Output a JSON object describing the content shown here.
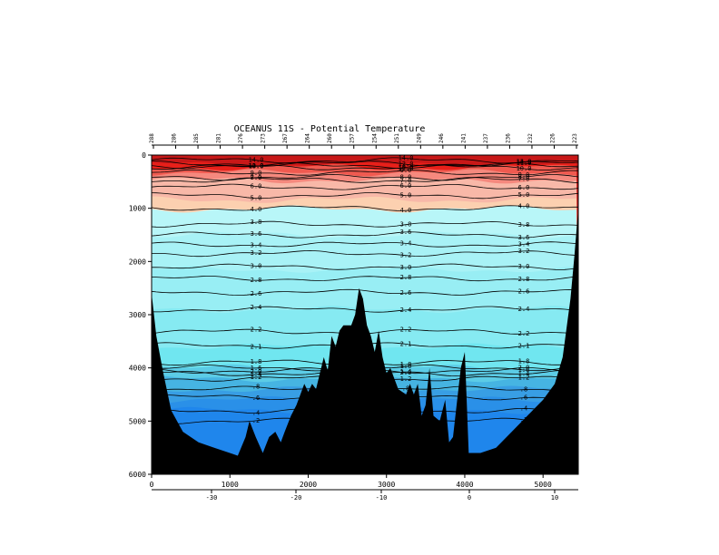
{
  "chart_data": {
    "type": "heatmap",
    "title": "OCEANUS 11S - Potential Temperature",
    "xlim": [
      0,
      5450
    ],
    "ylim": [
      6000,
      0
    ],
    "grid": false,
    "x_ticks": [
      "0",
      "1000",
      "2000",
      "3000",
      "4000",
      "5000"
    ],
    "y_ticks": [
      "0",
      "1000",
      "2000",
      "3000",
      "4000",
      "5000",
      "6000"
    ],
    "longitude_ticks": [
      "-30",
      "-20",
      "-10",
      "0",
      "10"
    ],
    "station_labels": [
      "288",
      "286",
      "285",
      "281",
      "276",
      "273",
      "267",
      "264",
      "260",
      "257",
      "254",
      "251",
      "249",
      "246",
      "241",
      "237",
      "236",
      "232",
      "226",
      "223"
    ],
    "bands": [
      {
        "range": [
          14,
          16
        ],
        "top_depth": 170,
        "color": "#e8201a"
      },
      {
        "range": [
          10,
          14
        ],
        "top_depth": 230,
        "color": "#f05a50"
      },
      {
        "range": [
          7,
          10
        ],
        "top_depth": 330,
        "color": "#f5897e"
      },
      {
        "range": [
          6,
          7
        ],
        "top_depth": 470,
        "color": "#f8b8a8"
      },
      {
        "range": [
          4,
          6
        ],
        "top_depth": 840,
        "color": "#fcd0b0"
      },
      {
        "range": [
          3.6,
          4
        ],
        "top_depth": 1015,
        "color": "#b8f6f8"
      },
      {
        "range": [
          3.0,
          3.6
        ],
        "top_depth": 1500,
        "color": "#a8f2f6"
      },
      {
        "range": [
          2.6,
          3.0
        ],
        "top_depth": 2150,
        "color": "#98eef4"
      },
      {
        "range": [
          2.2,
          2.6
        ],
        "top_depth": 2900,
        "color": "#86eaf2"
      },
      {
        "range": [
          2.0,
          2.2
        ],
        "top_depth": 3600,
        "color": "#70e6f0"
      },
      {
        "range": [
          1.6,
          2.0
        ],
        "top_depth": 4000,
        "color": "#5ccce6"
      },
      {
        "range": [
          1.2,
          1.6
        ],
        "top_depth": 4200,
        "color": "#46b4e2"
      },
      {
        "range": [
          0.8,
          1.2
        ],
        "top_depth": 4400,
        "color": "#389ee4"
      },
      {
        "range": [
          0.4,
          0.8
        ],
        "top_depth": 4600,
        "color": "#2a90e8"
      },
      {
        "range": [
          0,
          0.4
        ],
        "top_depth": 4800,
        "color": "#1f86ec"
      }
    ],
    "contours": [
      {
        "label": "14.0",
        "depth": 100
      },
      {
        "label": "12.0",
        "depth": 160
      },
      {
        "label": "11.0",
        "depth": 200
      },
      {
        "label": "10.0",
        "depth": 230
      },
      {
        "label": "9.0",
        "depth": 330
      },
      {
        "label": "8.0",
        "depth": 420
      },
      {
        "label": "7.0",
        "depth": 470
      },
      {
        "label": "6.0",
        "depth": 600
      },
      {
        "label": "5.0",
        "depth": 760
      },
      {
        "label": "4.0",
        "depth": 1000
      },
      {
        "label": "3.8",
        "depth": 1300
      },
      {
        "label": "3.6",
        "depth": 1500
      },
      {
        "label": "3.4",
        "depth": 1680
      },
      {
        "label": "3.2",
        "depth": 1850
      },
      {
        "label": "3.0",
        "depth": 2100
      },
      {
        "label": "2.8",
        "depth": 2320
      },
      {
        "label": "2.6",
        "depth": 2580
      },
      {
        "label": "2.4",
        "depth": 2900
      },
      {
        "label": "2.2",
        "depth": 3320
      },
      {
        "label": "2.1",
        "depth": 3580
      },
      {
        "label": "2.0",
        "depth": 4050
      },
      {
        "label": "1.8",
        "depth": 3900
      },
      {
        "label": "1.6",
        "depth": 4000
      },
      {
        "label": "1.4",
        "depth": 4100
      },
      {
        "label": "1.2",
        "depth": 4200
      },
      {
        "label": ".8",
        "depth": 4400
      },
      {
        "label": ".6",
        "depth": 4550
      },
      {
        "label": ".4",
        "depth": 4800
      },
      {
        "label": ".2",
        "depth": 5000
      }
    ],
    "bottom_profile": [
      [
        0,
        2600
      ],
      [
        60,
        3400
      ],
      [
        150,
        4100
      ],
      [
        250,
        4800
      ],
      [
        400,
        5200
      ],
      [
        600,
        5400
      ],
      [
        800,
        5500
      ],
      [
        1000,
        5600
      ],
      [
        1100,
        5650
      ],
      [
        1200,
        5300
      ],
      [
        1250,
        5000
      ],
      [
        1330,
        5300
      ],
      [
        1420,
        5600
      ],
      [
        1500,
        5300
      ],
      [
        1580,
        5200
      ],
      [
        1650,
        5400
      ],
      [
        1700,
        5200
      ],
      [
        1780,
        4900
      ],
      [
        1850,
        4700
      ],
      [
        1900,
        4500
      ],
      [
        1950,
        4300
      ],
      [
        2000,
        4450
      ],
      [
        2050,
        4300
      ],
      [
        2100,
        4400
      ],
      [
        2150,
        4100
      ],
      [
        2200,
        3800
      ],
      [
        2250,
        4050
      ],
      [
        2300,
        3400
      ],
      [
        2350,
        3600
      ],
      [
        2400,
        3300
      ],
      [
        2450,
        3200
      ],
      [
        2550,
        3200
      ],
      [
        2600,
        3000
      ],
      [
        2650,
        2500
      ],
      [
        2700,
        2700
      ],
      [
        2750,
        3200
      ],
      [
        2800,
        3400
      ],
      [
        2850,
        3700
      ],
      [
        2900,
        3300
      ],
      [
        2950,
        3800
      ],
      [
        3000,
        4100
      ],
      [
        3050,
        4000
      ],
      [
        3100,
        4200
      ],
      [
        3150,
        4400
      ],
      [
        3250,
        4500
      ],
      [
        3300,
        4300
      ],
      [
        3350,
        4500
      ],
      [
        3400,
        4300
      ],
      [
        3450,
        4900
      ],
      [
        3500,
        4700
      ],
      [
        3550,
        4000
      ],
      [
        3600,
        4900
      ],
      [
        3680,
        5000
      ],
      [
        3750,
        4600
      ],
      [
        3800,
        5400
      ],
      [
        3850,
        5300
      ],
      [
        3950,
        4000
      ],
      [
        4000,
        3700
      ],
      [
        4050,
        5600
      ],
      [
        4200,
        5600
      ],
      [
        4400,
        5500
      ],
      [
        4600,
        5200
      ],
      [
        4800,
        4900
      ],
      [
        5000,
        4600
      ],
      [
        5150,
        4300
      ],
      [
        5250,
        3800
      ],
      [
        5350,
        2700
      ],
      [
        5400,
        1900
      ],
      [
        5450,
        1000
      ]
    ]
  }
}
